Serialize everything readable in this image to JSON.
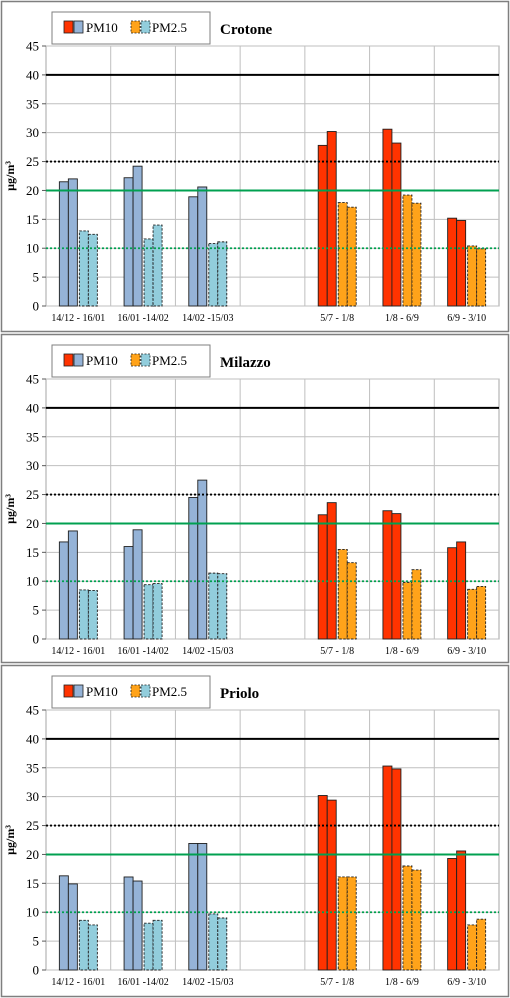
{
  "legend": {
    "pm10": "PM10",
    "pm25": "PM2.5"
  },
  "colors": {
    "winter_pm10": "#95b3d7",
    "winter_pm25": "#92cddc",
    "summer_pm10": "#ff3300",
    "summer_pm25": "#ffa31a",
    "line_40": "#000000",
    "line_25": "#000000",
    "line_20": "#00a050",
    "line_10": "#00a050"
  },
  "chart_data": [
    {
      "type": "bar",
      "title": "Crotone",
      "ylabel": "µg/m³",
      "ylim": [
        0,
        45
      ],
      "yticks": [
        0,
        5,
        10,
        15,
        20,
        25,
        30,
        35,
        40,
        45
      ],
      "grid": true,
      "legend_position": "top-left",
      "categories": [
        "14/12 - 16/01",
        "16/01 -14/02",
        "14/02 -15/03",
        "5/7 - 1/8",
        "1/8 - 6/9",
        "6/9 - 3/10"
      ],
      "season": [
        "winter",
        "winter",
        "winter",
        "summer",
        "summer",
        "summer"
      ],
      "series": [
        {
          "name": "PM10",
          "values": [
            [
              21.5,
              22
            ],
            [
              22.2,
              24.2
            ],
            [
              18.9,
              20.6
            ],
            [
              27.8,
              30.2
            ],
            [
              30.6,
              28.2
            ],
            [
              15.2,
              14.8
            ]
          ]
        },
        {
          "name": "PM2.5",
          "values": [
            [
              13.0,
              12.4
            ],
            [
              11.6,
              14.0
            ],
            [
              10.8,
              11.1
            ],
            [
              17.9,
              17.1
            ],
            [
              19.2,
              17.8
            ],
            [
              10.4,
              9.9
            ]
          ]
        }
      ],
      "reference_lines": [
        40,
        25,
        20,
        10
      ]
    },
    {
      "type": "bar",
      "title": "Milazzo",
      "ylabel": "µg/m³",
      "ylim": [
        0,
        45
      ],
      "yticks": [
        0,
        5,
        10,
        15,
        20,
        25,
        30,
        35,
        40,
        45
      ],
      "grid": true,
      "legend_position": "top-left",
      "categories": [
        "14/12 - 16/01",
        "16/01 -14/02",
        "14/02 -15/03",
        "5/7 - 1/8",
        "1/8 - 6/9",
        "6/9 - 3/10"
      ],
      "season": [
        "winter",
        "winter",
        "winter",
        "summer",
        "summer",
        "summer"
      ],
      "series": [
        {
          "name": "PM10",
          "values": [
            [
              16.8,
              18.7
            ],
            [
              16.0,
              18.9
            ],
            [
              24.5,
              27.5
            ],
            [
              21.5,
              23.6
            ],
            [
              22.2,
              21.7
            ],
            [
              15.8,
              16.8
            ]
          ]
        },
        {
          "name": "PM2.5",
          "values": [
            [
              8.5,
              8.4
            ],
            [
              9.4,
              9.6
            ],
            [
              11.4,
              11.3
            ],
            [
              15.5,
              13.2
            ],
            [
              9.8,
              12.0
            ],
            [
              8.6,
              9.1
            ]
          ]
        }
      ],
      "reference_lines": [
        40,
        25,
        20,
        10
      ]
    },
    {
      "type": "bar",
      "title": "Priolo",
      "ylabel": "µg/m³",
      "ylim": [
        0,
        45
      ],
      "yticks": [
        0,
        5,
        10,
        15,
        20,
        25,
        30,
        35,
        40,
        45
      ],
      "grid": true,
      "legend_position": "top-left",
      "categories": [
        "14/12 - 16/01",
        "16/01 -14/02",
        "14/02 -15/03",
        "5/7 - 1/8",
        "1/8 - 6/9",
        "6/9 - 3/10"
      ],
      "season": [
        "winter",
        "winter",
        "winter",
        "summer",
        "summer",
        "summer"
      ],
      "series": [
        {
          "name": "PM10",
          "values": [
            [
              16.3,
              14.9
            ],
            [
              16.1,
              15.4
            ],
            [
              21.9,
              21.9
            ],
            [
              30.2,
              29.4
            ],
            [
              35.3,
              34.8
            ],
            [
              19.3,
              20.6
            ]
          ]
        },
        {
          "name": "PM2.5",
          "values": [
            [
              8.6,
              7.8
            ],
            [
              8.1,
              8.6
            ],
            [
              9.7,
              9.0
            ],
            [
              16.1,
              16.1
            ],
            [
              18.0,
              17.3
            ],
            [
              7.8,
              8.8
            ]
          ]
        }
      ],
      "reference_lines": [
        40,
        25,
        20,
        10
      ]
    }
  ]
}
